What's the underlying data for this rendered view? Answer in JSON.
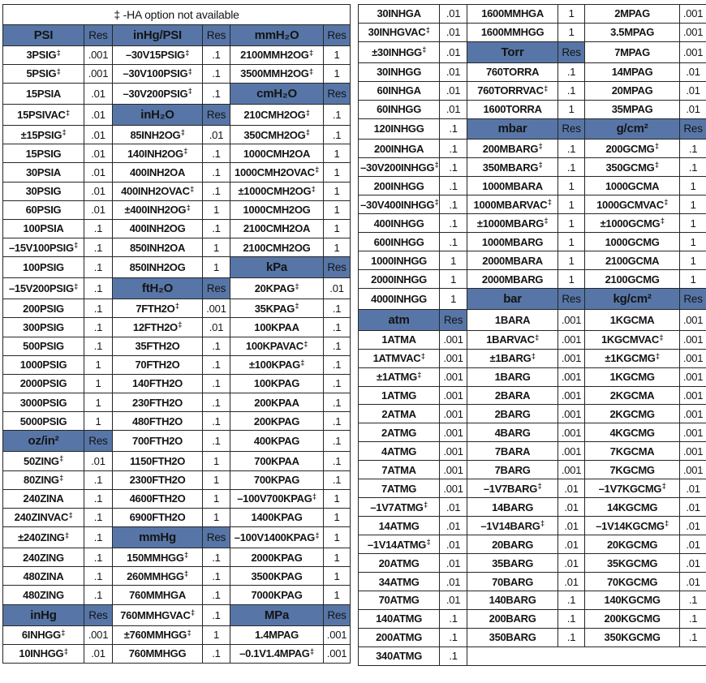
{
  "colors": {
    "header_bg": "#5776a7",
    "header_text": "#ffffff",
    "border": "#262626",
    "cell_text": "#141414",
    "cell_bg": "#ffffff"
  },
  "footnote": "‡ -HA option not available",
  "tables": [
    {
      "name": "pressure-ranges-table-left",
      "has_footnote": true,
      "rows": [
        [
          "H|PSI",
          "R|Res",
          "H|inHg/PSI",
          "R|Res",
          "H|mmH₂O",
          "R|Res"
        ],
        [
          "3PSIG‡",
          ".001",
          "–30V15PSIG‡",
          ".1",
          "2100MMH2OG‡",
          "1"
        ],
        [
          "5PSIG‡",
          ".001",
          "–30V100PSIG‡",
          ".1",
          "3500MMH2OG‡",
          "1"
        ],
        [
          "15PSIA",
          ".01",
          "–30V200PSIG‡",
          ".1",
          "H|cmH₂O",
          "R|Res"
        ],
        [
          "15PSIVAC‡",
          ".01",
          "H|inH₂O",
          "R|Res",
          "210CMH2OG‡",
          ".1"
        ],
        [
          "±15PSIG‡",
          ".01",
          "85INH2OG‡",
          ".01",
          "350CMH2OG‡",
          ".1"
        ],
        [
          "15PSIG",
          ".01",
          "140INH2OG‡",
          ".1",
          "1000CMH2OA",
          "1"
        ],
        [
          "30PSIA",
          ".01",
          "400INH2OA",
          ".1",
          "1000CMH2OVAC‡",
          "1"
        ],
        [
          "30PSIG",
          ".01",
          "400INH2OVAC‡",
          ".1",
          "±1000CMH2OG‡",
          "1"
        ],
        [
          "60PSIG",
          ".01",
          "±400INH2OG‡",
          "1",
          "1000CMH2OG",
          "1"
        ],
        [
          "100PSIA",
          ".1",
          "400INH2OG",
          ".1",
          "2100CMH2OA",
          "1"
        ],
        [
          "–15V100PSIG‡",
          ".1",
          "850INH2OA",
          "1",
          "2100CMH2OG",
          "1"
        ],
        [
          "100PSIG",
          ".1",
          "850INH2OG",
          "1",
          "H|kPa",
          "R|Res"
        ],
        [
          "–15V200PSIG‡",
          ".1",
          "H|ftH₂O",
          "R|Res",
          "20KPAG‡",
          ".01"
        ],
        [
          "200PSIG",
          ".1",
          "7FTH2O‡",
          ".001",
          "35KPAG‡",
          ".1"
        ],
        [
          "300PSIG",
          ".1",
          "12FTH2O‡",
          ".01",
          "100KPAA",
          ".1"
        ],
        [
          "500PSIG",
          ".1",
          "35FTH2O",
          ".1",
          "100KPAVAC‡",
          ".1"
        ],
        [
          "1000PSIG",
          "1",
          "70FTH2O",
          ".1",
          "±100KPAG‡",
          ".1"
        ],
        [
          "2000PSIG",
          "1",
          "140FTH2O",
          ".1",
          "100KPAG",
          ".1"
        ],
        [
          "3000PSIG",
          "1",
          "230FTH2O",
          ".1",
          "200KPAA",
          ".1"
        ],
        [
          "5000PSIG",
          "1",
          "480FTH2O",
          ".1",
          "200KPAG",
          ".1"
        ],
        [
          "H|oz/in²",
          "R|Res",
          "700FTH2O",
          ".1",
          "400KPAG",
          ".1"
        ],
        [
          "50ZING‡",
          ".01",
          "1150FTH2O",
          "1",
          "700KPAA",
          ".1"
        ],
        [
          "80ZING‡",
          ".1",
          "2300FTH2O",
          "1",
          "700KPAG",
          ".1"
        ],
        [
          "240ZINA",
          ".1",
          "4600FTH2O",
          "1",
          "–100V700KPAG‡",
          "1"
        ],
        [
          "240ZINVAC‡",
          ".1",
          "6900FTH2O",
          "1",
          "1400KPAG",
          "1"
        ],
        [
          "±240ZING‡",
          ".1",
          "H|mmHg",
          "R|Res",
          "–100V1400KPAG‡",
          "1"
        ],
        [
          "240ZING",
          ".1",
          "150MMHGG‡",
          ".1",
          "2000KPAG",
          "1"
        ],
        [
          "480ZINA",
          ".1",
          "260MMHGG‡",
          ".1",
          "3500KPAG",
          "1"
        ],
        [
          "480ZING",
          ".1",
          "760MMHGA",
          ".1",
          "7000KPAG",
          "1"
        ],
        [
          "H|inHg",
          "R|Res",
          "760MMHGVAC‡",
          ".1",
          "H|MPa",
          "R|Res"
        ],
        [
          "6INHGG‡",
          ".001",
          "±760MMHGG‡",
          "1",
          "1.4MPAG",
          ".001"
        ],
        [
          "10INHGG‡",
          ".01",
          "760MMHGG",
          ".1",
          "–0.1V1.4MPAG‡",
          ".001"
        ]
      ]
    },
    {
      "name": "pressure-ranges-table-right",
      "has_footnote": false,
      "rows": [
        [
          "30INHGA",
          ".01",
          "1600MMHGA",
          "1",
          "2MPAG",
          ".001"
        ],
        [
          "30INHGVAC‡",
          ".01",
          "1600MMHGG",
          "1",
          "3.5MPAG",
          ".001"
        ],
        [
          "±30INHGG‡",
          ".01",
          "H|Torr",
          "R|Res",
          "7MPAG",
          ".001"
        ],
        [
          "30INHGG",
          ".01",
          "760TORRA",
          ".1",
          "14MPAG",
          ".01"
        ],
        [
          "60INHGA",
          ".01",
          "760TORRVAC‡",
          ".1",
          "20MPAG",
          ".01"
        ],
        [
          "60INHGG",
          ".01",
          "1600TORRA",
          "1",
          "35MPAG",
          ".01"
        ],
        [
          "120INHGG",
          ".1",
          "H|mbar",
          "R|Res",
          "H|g/cm²",
          "R|Res"
        ],
        [
          "200INHGA",
          ".1",
          "200MBARG‡",
          ".1",
          "200GCMG‡",
          ".1"
        ],
        [
          "–30V200INHGG‡",
          ".1",
          "350MBARG‡",
          ".1",
          "350GCMG‡",
          ".1"
        ],
        [
          "200INHGG",
          ".1",
          "1000MBARA",
          "1",
          "1000GCMA",
          "1"
        ],
        [
          "–30V400INHGG‡",
          ".1",
          "1000MBARVAC‡",
          "1",
          "1000GCMVAC‡",
          "1"
        ],
        [
          "400INHGG",
          ".1",
          "±1000MBARG‡",
          "1",
          "±1000GCMG‡",
          "1"
        ],
        [
          "600INHGG",
          ".1",
          "1000MBARG",
          "1",
          "1000GCMG",
          "1"
        ],
        [
          "1000INHGG",
          "1",
          "2000MBARA",
          "1",
          "2100GCMA",
          "1"
        ],
        [
          "2000INHGG",
          "1",
          "2000MBARG",
          "1",
          "2100GCMG",
          "1"
        ],
        [
          "4000INHGG",
          "1",
          "H|bar",
          "R|Res",
          "H|kg/cm²",
          "R|Res"
        ],
        [
          "H|atm",
          "R|Res",
          "1BARA",
          ".001",
          "1KGCMA",
          ".001"
        ],
        [
          "1ATMA",
          ".001",
          "1BARVAC‡",
          ".001",
          "1KGCMVAC‡",
          ".001"
        ],
        [
          "1ATMVAC‡",
          ".001",
          "±1BARG‡",
          ".001",
          "±1KGCMG‡",
          ".001"
        ],
        [
          "±1ATMG‡",
          ".001",
          "1BARG",
          ".001",
          "1KGCMG",
          ".001"
        ],
        [
          "1ATMG",
          ".001",
          "2BARA",
          ".001",
          "2KGCMA",
          ".001"
        ],
        [
          "2ATMA",
          ".001",
          "2BARG",
          ".001",
          "2KGCMG",
          ".001"
        ],
        [
          "2ATMG",
          ".001",
          "4BARG",
          ".001",
          "4KGCMG",
          ".001"
        ],
        [
          "4ATMG",
          ".001",
          "7BARA",
          ".001",
          "7KGCMA",
          ".001"
        ],
        [
          "7ATMA",
          ".001",
          "7BARG",
          ".001",
          "7KGCMG",
          ".001"
        ],
        [
          "7ATMG",
          ".001",
          "–1V7BARG‡",
          ".01",
          "–1V7KGCMG‡",
          ".01"
        ],
        [
          "–1V7ATMG‡",
          ".01",
          "14BARG",
          ".01",
          "14KGCMG",
          ".01"
        ],
        [
          "14ATMG",
          ".01",
          "–1V14BARG‡",
          ".01",
          "–1V14KGCMG‡",
          ".01"
        ],
        [
          "–1V14ATMG‡",
          ".01",
          "20BARG",
          ".01",
          "20KGCMG",
          ".01"
        ],
        [
          "20ATMG",
          ".01",
          "35BARG",
          ".01",
          "35KGCMG",
          ".01"
        ],
        [
          "34ATMG",
          ".01",
          "70BARG",
          ".01",
          "70KGCMG",
          ".01"
        ],
        [
          "70ATMG",
          ".01",
          "140BARG",
          ".1",
          "140KGCMG",
          ".1"
        ],
        [
          "140ATMG",
          ".1",
          "200BARG",
          ".1",
          "200KGCMG",
          ".1"
        ],
        [
          "200ATMG",
          ".1",
          "350BARG",
          ".1",
          "350KGCMG",
          ".1"
        ],
        [
          "340ATMG",
          ".1",
          "E|",
          "E|",
          "E|",
          "E|"
        ]
      ]
    }
  ]
}
